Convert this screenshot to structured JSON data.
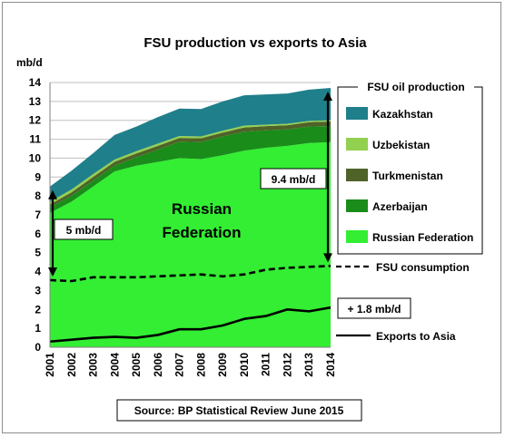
{
  "chart_data": {
    "type": "area",
    "title": "FSU production vs exports to Asia",
    "ylabel": "mb/d",
    "xlabel": "",
    "ylim": [
      0,
      14
    ],
    "y_ticks": [
      "0",
      "1",
      "2",
      "3",
      "4",
      "5",
      "6",
      "7",
      "8",
      "9",
      "10",
      "11",
      "12",
      "13",
      "14"
    ],
    "categories": [
      "2001",
      "2002",
      "2003",
      "2004",
      "2005",
      "2006",
      "2007",
      "2008",
      "2009",
      "2010",
      "2011",
      "2012",
      "2013",
      "2014"
    ],
    "grid": true,
    "legend_title": "FSU oil production",
    "stack_order": [
      "Russian Federation",
      "Azerbaijan",
      "Turkmenistan",
      "Uzbekistan",
      "Kazakhstan"
    ],
    "series": [
      {
        "name": "Kazakhstan",
        "type": "area",
        "color": "#1f7f8a",
        "values": [
          0.8,
          1.0,
          1.1,
          1.3,
          1.3,
          1.4,
          1.45,
          1.45,
          1.55,
          1.6,
          1.6,
          1.6,
          1.65,
          1.7
        ]
      },
      {
        "name": "Uzbekistan",
        "type": "area",
        "color": "#92d050",
        "values": [
          0.15,
          0.15,
          0.15,
          0.12,
          0.12,
          0.12,
          0.1,
          0.1,
          0.1,
          0.1,
          0.08,
          0.08,
          0.07,
          0.07
        ]
      },
      {
        "name": "Turkmenistan",
        "type": "area",
        "color": "#4f6228",
        "values": [
          0.15,
          0.18,
          0.2,
          0.2,
          0.2,
          0.2,
          0.2,
          0.2,
          0.2,
          0.22,
          0.22,
          0.22,
          0.23,
          0.24
        ]
      },
      {
        "name": "Azerbaijan",
        "type": "area",
        "color": "#1a8c1a",
        "values": [
          0.3,
          0.31,
          0.31,
          0.31,
          0.45,
          0.65,
          0.87,
          0.9,
          1.0,
          1.0,
          0.92,
          0.87,
          0.87,
          0.85
        ]
      },
      {
        "name": "Russian Federation",
        "type": "area",
        "color": "#33ee33",
        "values": [
          7.1,
          7.7,
          8.5,
          9.3,
          9.6,
          9.8,
          10.0,
          9.95,
          10.15,
          10.4,
          10.55,
          10.65,
          10.8,
          10.85
        ]
      },
      {
        "name": "FSU consumption",
        "type": "line",
        "style": "dashed",
        "color": "#000000",
        "values": [
          3.55,
          3.5,
          3.7,
          3.7,
          3.7,
          3.75,
          3.8,
          3.85,
          3.75,
          3.85,
          4.1,
          4.2,
          4.25,
          4.3
        ]
      },
      {
        "name": "Exports to Asia",
        "type": "line",
        "style": "solid",
        "color": "#000000",
        "values": [
          0.3,
          0.4,
          0.5,
          0.55,
          0.5,
          0.65,
          0.95,
          0.95,
          1.15,
          1.5,
          1.65,
          2.0,
          1.9,
          2.1
        ]
      }
    ],
    "annotations": {
      "area_label": [
        "Russian",
        "Federation"
      ],
      "gap_2001": "5 mb/d",
      "gap_2014": "9.4 mb/d",
      "exports_change": "+ 1.8 mb/d"
    },
    "source": "Source: BP Statistical Review June 2015"
  }
}
